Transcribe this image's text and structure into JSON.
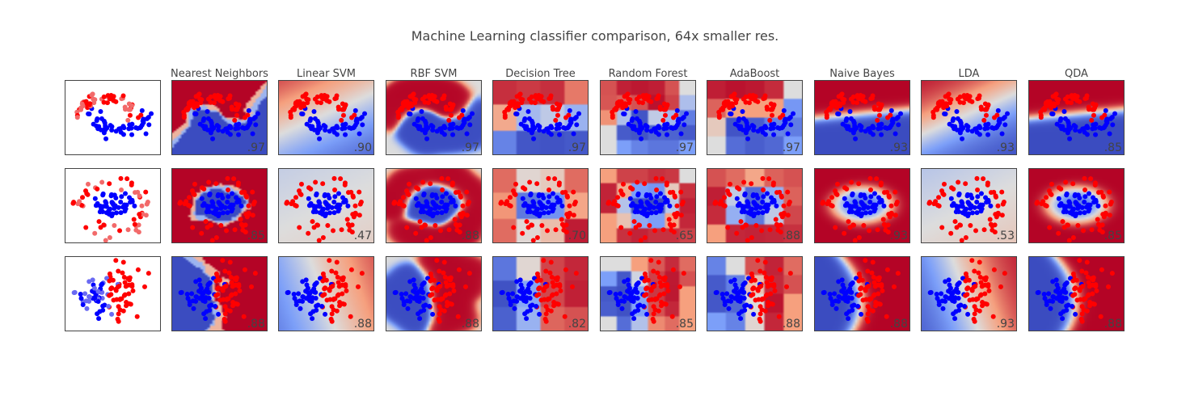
{
  "title": "Machine Learning classifier comparison, 64x smaller res.",
  "colors": {
    "blue": "#3b4cc0",
    "red": "#b40426",
    "point_red": "#ff0000",
    "point_blue": "#0000ff",
    "point_red_test": "#f26a6a",
    "point_blue_test": "#6a6af2",
    "frame": "#444444"
  },
  "chart_data": {
    "type": "heatmap",
    "description": "Grid of scatter plots over classifier decision-surface heatmaps; rows are datasets, first column is input data.",
    "columns": [
      "",
      "Nearest Neighbors",
      "Linear SVM",
      "RBF SVM",
      "Decision Tree",
      "Random Forest",
      "AdaBoost",
      "Naive Bayes",
      "LDA",
      "QDA"
    ],
    "datasets": [
      "moons",
      "circles",
      "linear"
    ],
    "scores": [
      [
        "",
        ".97",
        ".90",
        ".97",
        ".97",
        ".97",
        ".97",
        ".93",
        ".93",
        ".85"
      ],
      [
        "",
        ".85",
        ".47",
        ".88",
        ".70",
        ".65",
        ".88",
        ".93",
        ".53",
        ".85"
      ],
      [
        "",
        ".88",
        ".88",
        ".88",
        ".82",
        ".85",
        ".88",
        ".88",
        ".93",
        ".88"
      ]
    ],
    "grid": false,
    "axes_visible": false
  }
}
